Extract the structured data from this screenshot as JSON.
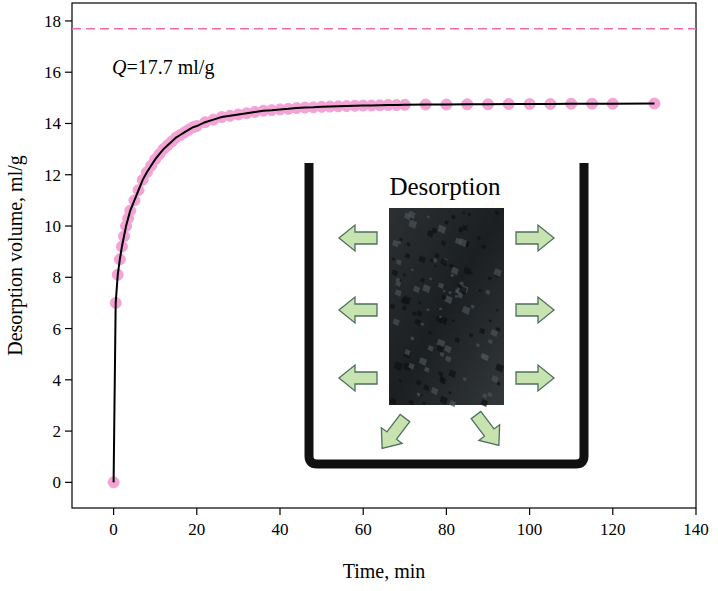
{
  "chart_data": {
    "type": "scatter",
    "x_label": "Time, min",
    "y_label": "Desorption volume, ml/g",
    "xlim": [
      -10,
      140
    ],
    "xticks": [
      0,
      20,
      40,
      60,
      80,
      100,
      120,
      140
    ],
    "ylim": [
      -1,
      18.7
    ],
    "yticks": [
      0,
      2,
      4,
      6,
      8,
      10,
      12,
      14,
      16,
      18
    ],
    "grid": false,
    "x": [
      0,
      0.5,
      1,
      1.5,
      2,
      2.5,
      3,
      3.5,
      4,
      5,
      6,
      7,
      8,
      9,
      10,
      11,
      12,
      13,
      14,
      15,
      16,
      17,
      18,
      19,
      20,
      22,
      24,
      26,
      28,
      30,
      32,
      34,
      36,
      38,
      40,
      42,
      44,
      46,
      48,
      50,
      52,
      54,
      56,
      58,
      60,
      62,
      64,
      66,
      68,
      70,
      75,
      80,
      85,
      90,
      95,
      100,
      105,
      110,
      115,
      120,
      130
    ],
    "series": [
      {
        "type": "scatter",
        "color": "#f4a3d6",
        "marker": "circle",
        "values": [
          0,
          7.0,
          8.1,
          8.7,
          9.2,
          9.6,
          10.0,
          10.3,
          10.6,
          11.0,
          11.4,
          11.8,
          12.1,
          12.35,
          12.6,
          12.8,
          13.0,
          13.15,
          13.3,
          13.45,
          13.55,
          13.65,
          13.75,
          13.85,
          13.9,
          14.05,
          14.15,
          14.25,
          14.3,
          14.35,
          14.4,
          14.45,
          14.5,
          14.52,
          14.55,
          14.57,
          14.6,
          14.62,
          14.63,
          14.65,
          14.66,
          14.67,
          14.68,
          14.69,
          14.7,
          14.7,
          14.71,
          14.72,
          14.72,
          14.73,
          14.74,
          14.74,
          14.75,
          14.75,
          14.76,
          14.76,
          14.76,
          14.77,
          14.77,
          14.77,
          14.78
        ]
      },
      {
        "type": "line",
        "color": "#000000",
        "line_style": "solid",
        "values": [
          0,
          7.0,
          8.1,
          8.7,
          9.2,
          9.6,
          10.0,
          10.3,
          10.6,
          11.0,
          11.4,
          11.8,
          12.1,
          12.35,
          12.6,
          12.8,
          13.0,
          13.15,
          13.3,
          13.45,
          13.55,
          13.65,
          13.75,
          13.85,
          13.9,
          14.05,
          14.15,
          14.25,
          14.3,
          14.35,
          14.4,
          14.45,
          14.5,
          14.52,
          14.55,
          14.57,
          14.6,
          14.62,
          14.63,
          14.65,
          14.66,
          14.67,
          14.68,
          14.69,
          14.7,
          14.7,
          14.71,
          14.72,
          14.72,
          14.73,
          14.74,
          14.74,
          14.75,
          14.75,
          14.76,
          14.76,
          14.76,
          14.77,
          14.77,
          14.77,
          14.78
        ]
      }
    ],
    "reference_line": {
      "value": 17.7,
      "color": "#f06aae",
      "line_style": "dashed"
    },
    "annotations": [
      {
        "text": "Q=17.7 ml/g"
      }
    ],
    "inset": {
      "label": "Desorption"
    }
  }
}
